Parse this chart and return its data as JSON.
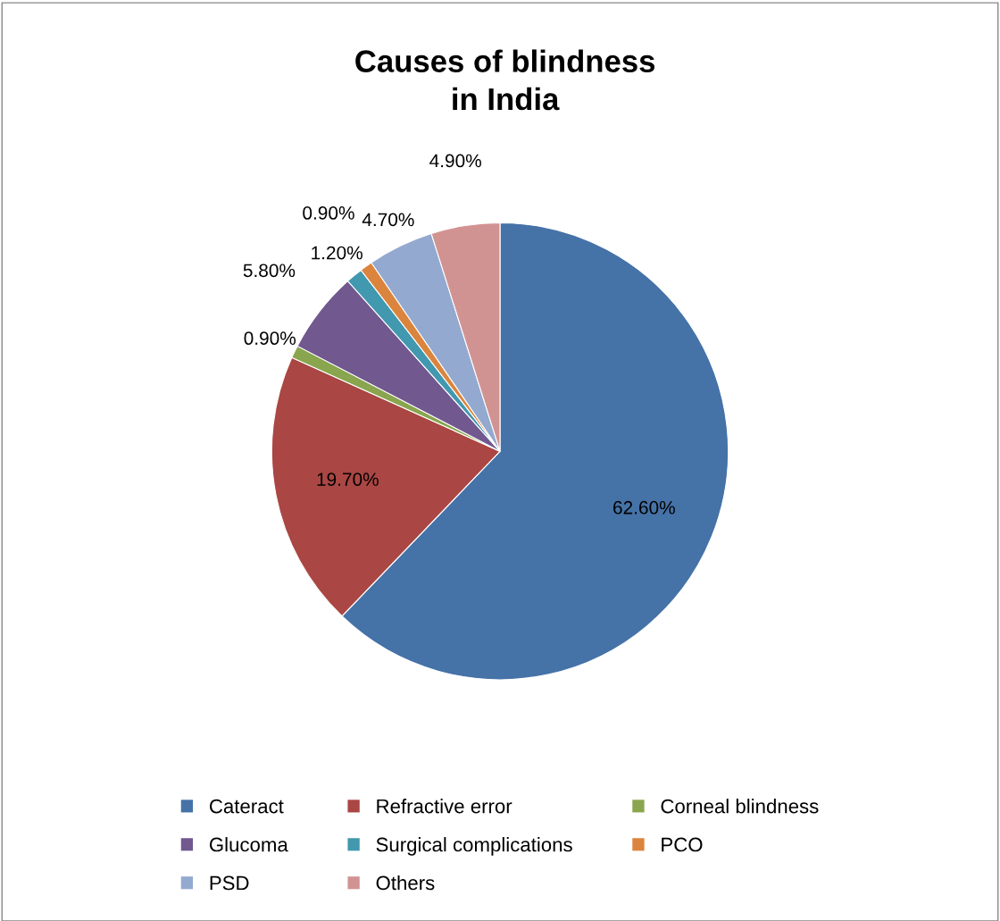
{
  "chart_data": {
    "type": "pie",
    "title": "Causes of blindness\nin India",
    "categories": [
      "Cateract",
      "Refractive error",
      "Corneal blindness",
      "Glucoma",
      "Surgical complications",
      "PCO",
      "PSD",
      "Others"
    ],
    "values": [
      62.6,
      19.7,
      0.9,
      5.8,
      1.2,
      0.9,
      4.7,
      4.9
    ],
    "value_labels": [
      "62.60%",
      "19.70%",
      "0.90%",
      "5.80%",
      "1.20%",
      "0.90%",
      "4.70%",
      "4.90%"
    ],
    "colors": [
      "#4572a7",
      "#aa4643",
      "#89a54e",
      "#71588f",
      "#4198af",
      "#db843d",
      "#93a9cf",
      "#d19392"
    ],
    "legend": "bottom"
  }
}
